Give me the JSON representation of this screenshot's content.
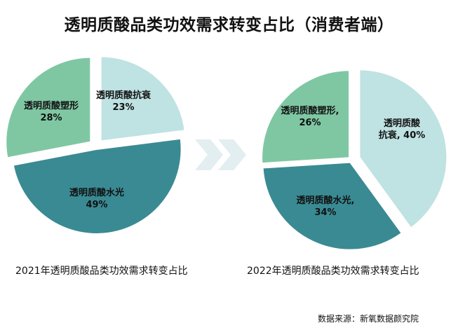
{
  "title": "透明质酸品类功效需求转变占比（消费者端）",
  "colors": {
    "anti_aging": "#BFE2E2",
    "hydration": "#3A8A93",
    "shaping": "#7FC7A3",
    "arrow": "#E2EEF0",
    "stroke": "#FFFFFF"
  },
  "chart_data": [
    {
      "type": "pie",
      "caption": "2021年透明质酸品类功效需求转变占比",
      "slices": [
        {
          "id": "anti_aging",
          "label_lines": [
            "透明质酸抗衰",
            "23%"
          ],
          "value": 23
        },
        {
          "id": "hydration",
          "label_lines": [
            "透明质酸水光",
            "49%"
          ],
          "value": 49
        },
        {
          "id": "shaping",
          "label_lines": [
            "透明质酸塑形",
            "28%"
          ],
          "value": 28
        }
      ]
    },
    {
      "type": "pie",
      "caption": "2022年透明质酸品类功效需求转变占比",
      "slices": [
        {
          "id": "anti_aging",
          "label_lines": [
            "透明质酸",
            "抗衰, 40%"
          ],
          "value": 40
        },
        {
          "id": "hydration",
          "label_lines": [
            "透明质酸水光,",
            "34%"
          ],
          "value": 34
        },
        {
          "id": "shaping",
          "label_lines": [
            "透明质酸塑形,",
            "26%"
          ],
          "value": 26
        }
      ]
    }
  ],
  "source": "数据来源：新氧数据颜究院"
}
